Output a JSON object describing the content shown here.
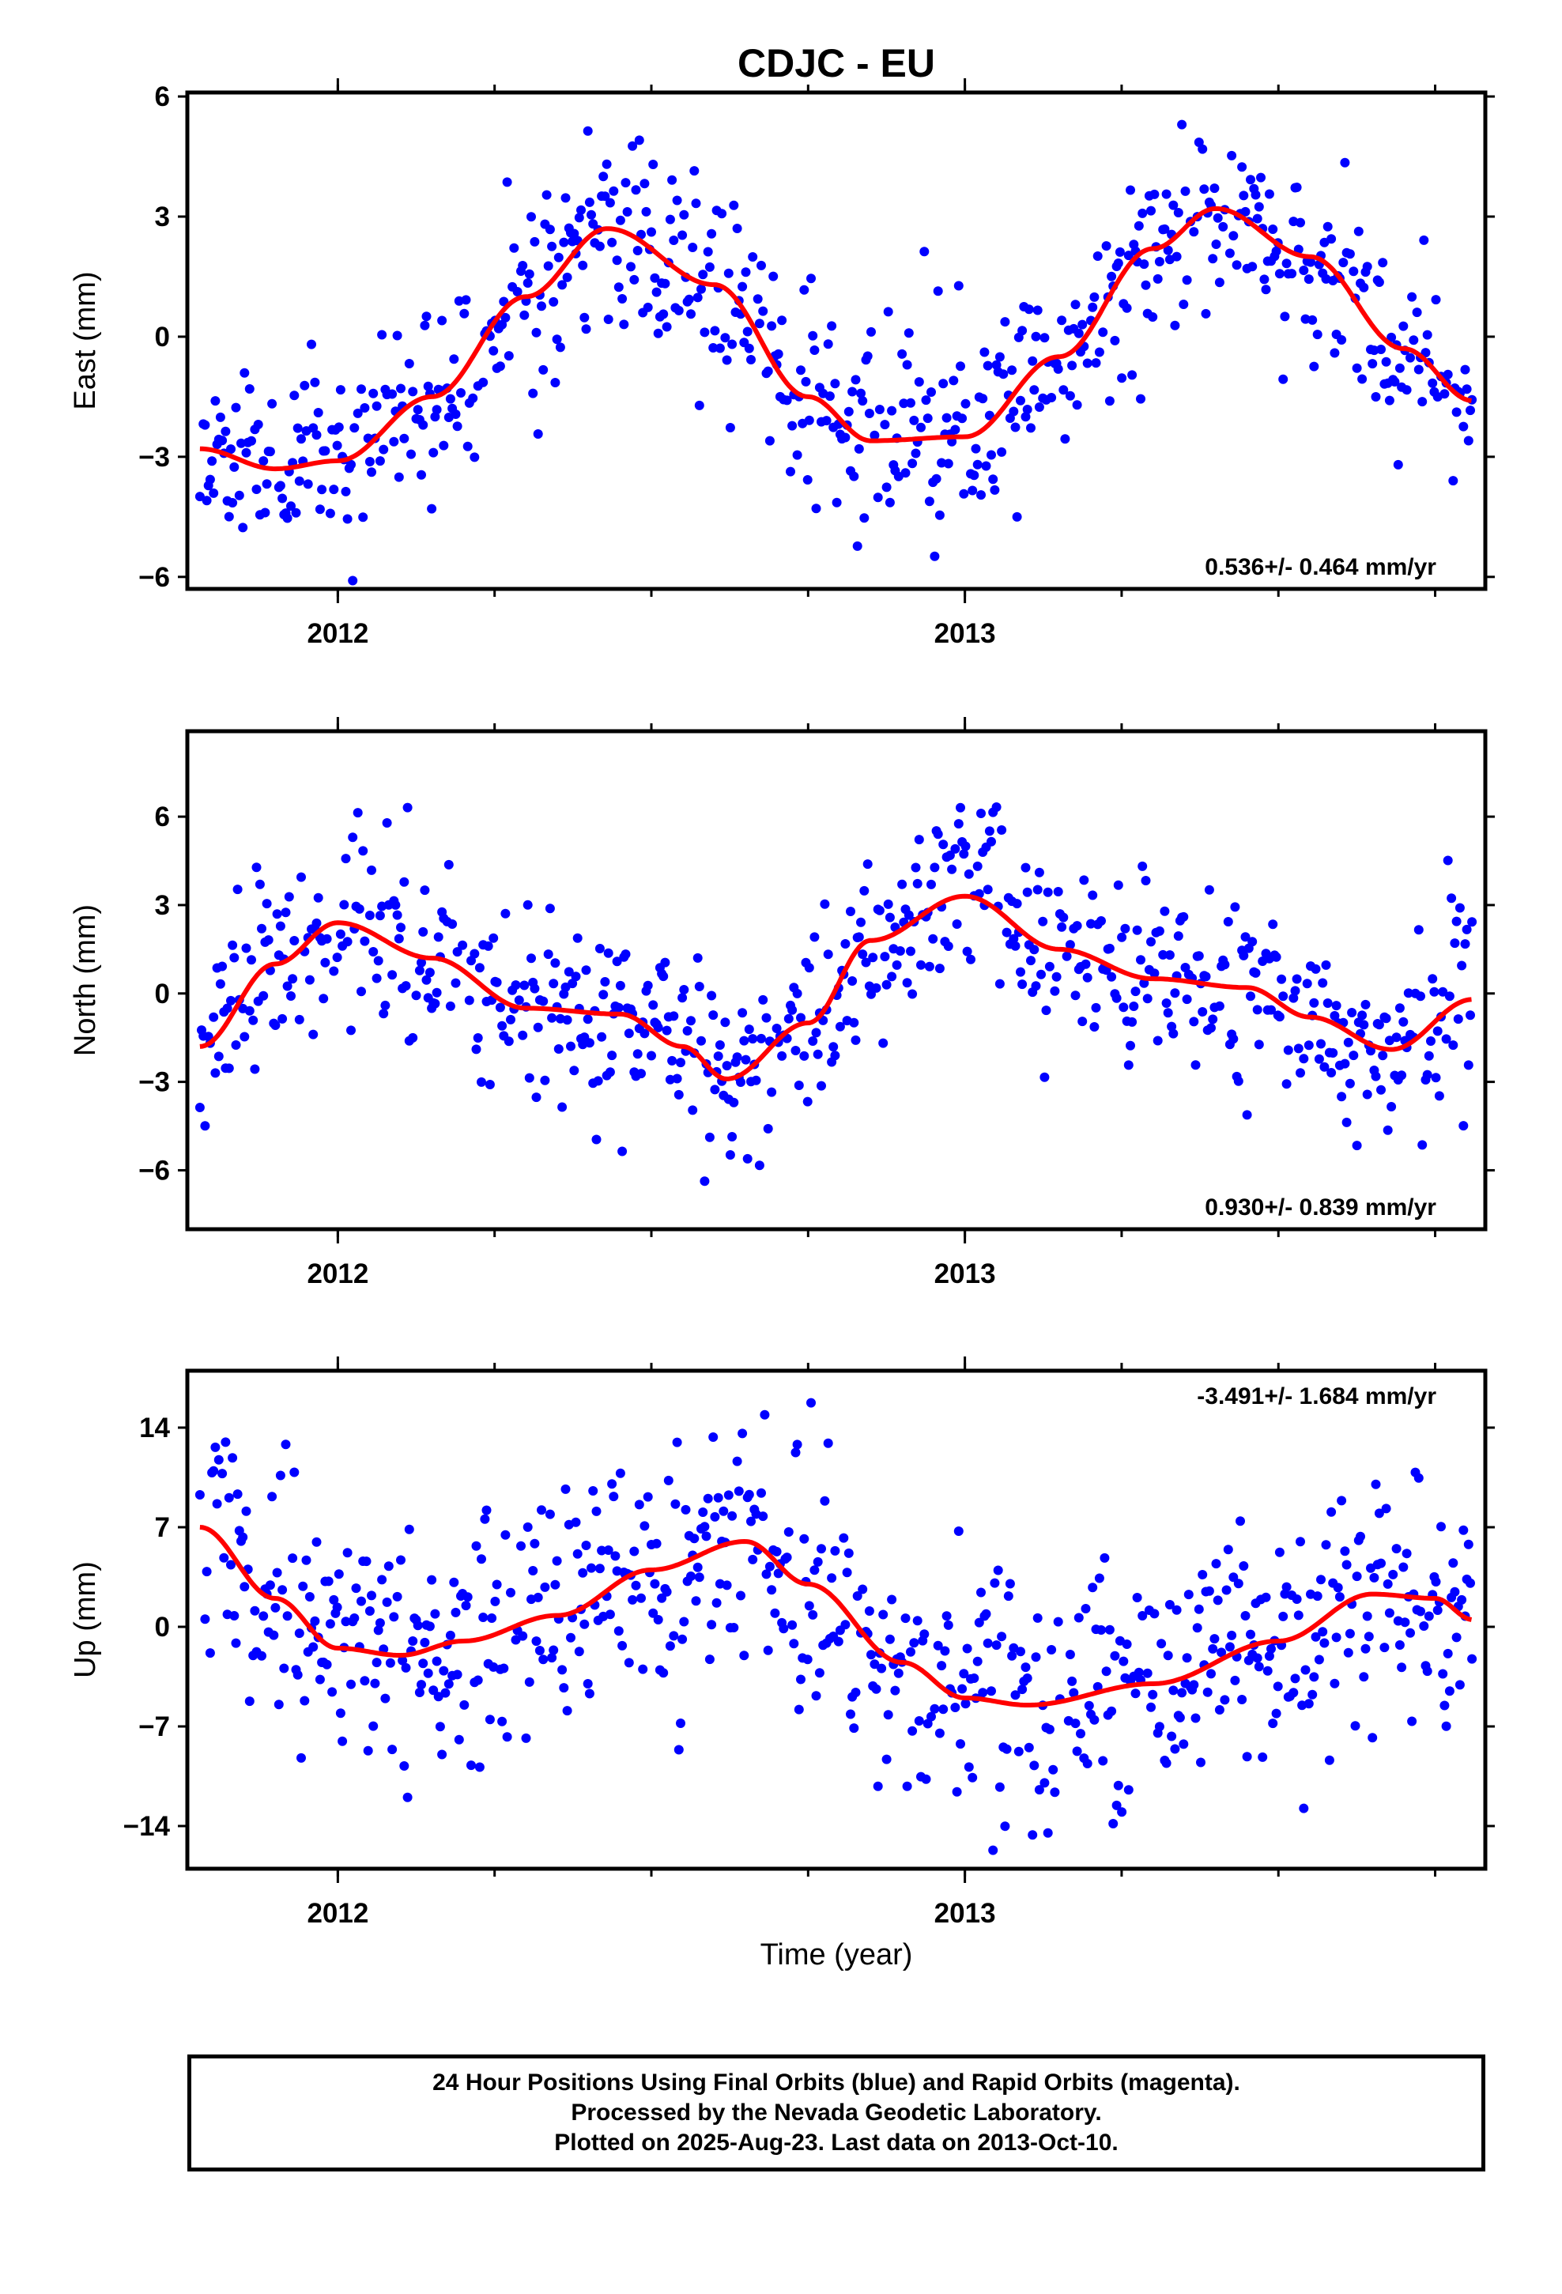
{
  "title": "CDJC - EU",
  "xlabel": "Time (year)",
  "footer": {
    "line1": "24 Hour Positions Using Final Orbits (blue) and Rapid Orbits (magenta).",
    "line2": "Processed by the Nevada Geodetic Laboratory.",
    "line3": "Plotted on 2025-Aug-23. Last data on 2013-Oct-10."
  },
  "colors": {
    "data_points": "#0000ff",
    "model_fit": "#ff0000",
    "frame": "#000000"
  },
  "chart_data": [
    {
      "type": "scatter",
      "name": "east",
      "ylabel": "East (mm)",
      "rate_text": "0.536+/- 0.464 mm/yr",
      "xlim": [
        2011.76,
        2013.83
      ],
      "ylim": [
        -6.3,
        6.1
      ],
      "x_ticks": [
        2012,
        2013
      ],
      "y_ticks": [
        -6,
        -3,
        0,
        3,
        6
      ],
      "fit_curve": {
        "x": [
          2011.78,
          2011.9,
          2012.0,
          2012.15,
          2012.3,
          2012.43,
          2012.6,
          2012.75,
          2012.85,
          2013.0,
          2013.15,
          2013.3,
          2013.4,
          2013.55,
          2013.7,
          2013.81
        ],
        "y": [
          -2.8,
          -3.3,
          -3.1,
          -1.5,
          1.0,
          2.7,
          1.3,
          -1.5,
          -2.6,
          -2.5,
          -0.5,
          2.2,
          3.2,
          2.0,
          -0.3,
          -1.6
        ]
      },
      "points_seed": 11,
      "points_scatter": 1.25
    },
    {
      "type": "scatter",
      "name": "north",
      "ylabel": "North (mm)",
      "rate_text": "0.930+/- 0.839 mm/yr",
      "xlim": [
        2011.76,
        2013.83
      ],
      "ylim": [
        -8.0,
        8.9
      ],
      "x_ticks": [
        2012,
        2013
      ],
      "y_ticks": [
        -6,
        -3,
        0,
        3,
        6
      ],
      "fit_curve": {
        "x": [
          2011.78,
          2011.9,
          2012.0,
          2012.15,
          2012.3,
          2012.45,
          2012.55,
          2012.62,
          2012.75,
          2012.85,
          2013.0,
          2013.15,
          2013.3,
          2013.45,
          2013.55,
          2013.68,
          2013.81
        ],
        "y": [
          -1.8,
          1.0,
          2.4,
          1.2,
          -0.5,
          -0.7,
          -1.8,
          -2.9,
          -1.0,
          1.8,
          3.3,
          1.5,
          0.5,
          0.2,
          -0.8,
          -1.9,
          -0.2
        ]
      },
      "points_seed": 23,
      "points_scatter": 1.6
    },
    {
      "type": "scatter",
      "name": "up",
      "ylabel": "Up (mm)",
      "rate_text": "-3.491+/- 1.684 mm/yr",
      "xlim": [
        2011.76,
        2013.83
      ],
      "ylim": [
        -17.0,
        18.0
      ],
      "x_ticks": [
        2012,
        2013
      ],
      "y_ticks": [
        -14,
        -7,
        0,
        7,
        14
      ],
      "fit_curve": {
        "x": [
          2011.78,
          2011.9,
          2012.0,
          2012.1,
          2012.2,
          2012.35,
          2012.5,
          2012.65,
          2012.75,
          2012.9,
          2013.0,
          2013.1,
          2013.3,
          2013.5,
          2013.65,
          2013.75,
          2013.81
        ],
        "y": [
          7.0,
          2.0,
          -1.5,
          -2.0,
          -1.0,
          0.8,
          4.0,
          6.0,
          3.0,
          -2.5,
          -5.0,
          -5.5,
          -4.0,
          -1.0,
          2.3,
          2.0,
          0.5
        ]
      },
      "points_seed": 37,
      "points_scatter": 4.2
    }
  ]
}
